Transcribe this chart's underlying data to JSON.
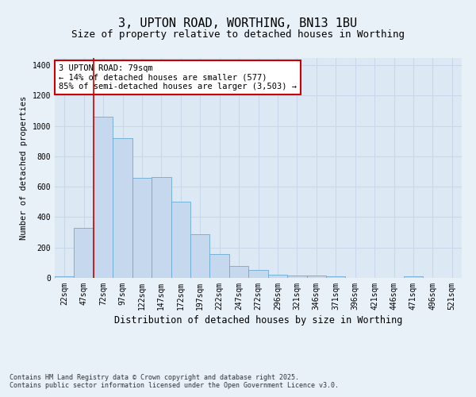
{
  "title": "3, UPTON ROAD, WORTHING, BN13 1BU",
  "subtitle": "Size of property relative to detached houses in Worthing",
  "xlabel": "Distribution of detached houses by size in Worthing",
  "ylabel": "Number of detached properties",
  "categories": [
    "22sqm",
    "47sqm",
    "72sqm",
    "97sqm",
    "122sqm",
    "147sqm",
    "172sqm",
    "197sqm",
    "222sqm",
    "247sqm",
    "272sqm",
    "296sqm",
    "321sqm",
    "346sqm",
    "371sqm",
    "396sqm",
    "421sqm",
    "446sqm",
    "471sqm",
    "496sqm",
    "521sqm"
  ],
  "values": [
    10,
    330,
    1060,
    920,
    660,
    665,
    500,
    290,
    155,
    80,
    50,
    20,
    18,
    18,
    10,
    0,
    0,
    0,
    10,
    0,
    0
  ],
  "bar_color": "#c5d8ee",
  "bar_edge_color": "#6aaad4",
  "vline_color": "#cc0000",
  "vline_x_index": 2,
  "annotation_text": "3 UPTON ROAD: 79sqm\n← 14% of detached houses are smaller (577)\n85% of semi-detached houses are larger (3,503) →",
  "annotation_box_color": "#ffffff",
  "annotation_box_edge_color": "#cc0000",
  "background_color": "#e8f0f8",
  "plot_bg_color": "#dce9f5",
  "grid_color": "#c8d8ea",
  "ylim": [
    0,
    1450
  ],
  "yticks": [
    0,
    200,
    400,
    600,
    800,
    1000,
    1200,
    1400
  ],
  "footer_text": "Contains HM Land Registry data © Crown copyright and database right 2025.\nContains public sector information licensed under the Open Government Licence v3.0.",
  "title_fontsize": 11,
  "subtitle_fontsize": 9,
  "xlabel_fontsize": 8.5,
  "ylabel_fontsize": 7.5,
  "tick_fontsize": 7,
  "annotation_fontsize": 7.5,
  "footer_fontsize": 6
}
